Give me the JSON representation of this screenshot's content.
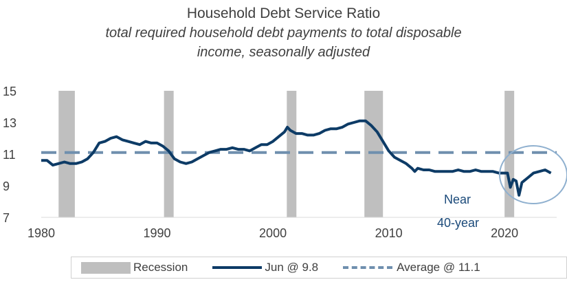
{
  "chart_data": {
    "type": "line",
    "title": "Household Debt Service Ratio",
    "subtitle_line1": "total required household debt payments to total disposable",
    "subtitle_line2": "income, seasonally adjusted",
    "xlim": [
      1980,
      2024.5
    ],
    "ylim": [
      7,
      15
    ],
    "x_ticks": [
      1980,
      1990,
      2000,
      2010,
      2020
    ],
    "y_ticks": [
      7,
      9,
      11,
      13,
      15
    ],
    "recessions": [
      [
        1981.5,
        1982.9
      ],
      [
        1990.6,
        1991.2
      ],
      [
        2001.2,
        2001.9
      ],
      [
        2007.9,
        2009.5
      ],
      [
        2020.0,
        2020.4
      ]
    ],
    "series": [
      {
        "name": "Jun @ 9.8",
        "color": "#0d3b66",
        "x": [
          1980.0,
          1980.5,
          1981.0,
          1981.5,
          1982.0,
          1982.5,
          1983.0,
          1983.5,
          1984.0,
          1984.5,
          1985.0,
          1985.5,
          1986.0,
          1986.5,
          1987.0,
          1987.5,
          1988.0,
          1988.5,
          1989.0,
          1989.5,
          1990.0,
          1990.5,
          1991.0,
          1991.5,
          1992.0,
          1992.5,
          1993.0,
          1993.5,
          1994.0,
          1994.5,
          1995.0,
          1995.5,
          1996.0,
          1996.5,
          1997.0,
          1997.5,
          1998.0,
          1998.5,
          1999.0,
          1999.5,
          2000.0,
          2000.5,
          2001.0,
          2001.25,
          2001.5,
          2002.0,
          2002.5,
          2003.0,
          2003.5,
          2004.0,
          2004.5,
          2005.0,
          2005.5,
          2006.0,
          2006.5,
          2007.0,
          2007.5,
          2008.0,
          2008.5,
          2009.0,
          2009.5,
          2010.0,
          2010.5,
          2011.0,
          2011.5,
          2012.0,
          2012.25,
          2012.5,
          2013.0,
          2013.5,
          2014.0,
          2014.5,
          2015.0,
          2015.5,
          2016.0,
          2016.5,
          2017.0,
          2017.5,
          2018.0,
          2018.5,
          2019.0,
          2019.5,
          2020.0,
          2020.25,
          2020.5,
          2020.75,
          2021.0,
          2021.25,
          2021.5,
          2022.0,
          2022.5,
          2023.0,
          2023.5,
          2024.0
        ],
        "values": [
          10.6,
          10.6,
          10.3,
          10.4,
          10.5,
          10.4,
          10.4,
          10.5,
          10.7,
          11.1,
          11.7,
          11.8,
          12.0,
          12.1,
          11.9,
          11.8,
          11.7,
          11.6,
          11.8,
          11.7,
          11.7,
          11.5,
          11.2,
          10.7,
          10.5,
          10.4,
          10.5,
          10.7,
          10.9,
          11.1,
          11.2,
          11.3,
          11.3,
          11.4,
          11.3,
          11.3,
          11.2,
          11.4,
          11.6,
          11.6,
          11.8,
          12.1,
          12.4,
          12.7,
          12.5,
          12.3,
          12.3,
          12.2,
          12.2,
          12.3,
          12.5,
          12.6,
          12.6,
          12.7,
          12.9,
          13.0,
          13.1,
          13.1,
          12.8,
          12.4,
          11.8,
          11.2,
          10.8,
          10.6,
          10.4,
          10.1,
          9.9,
          10.1,
          10.0,
          10.0,
          9.9,
          9.9,
          9.9,
          9.9,
          10.0,
          9.9,
          9.9,
          10.0,
          9.9,
          9.9,
          9.9,
          9.8,
          9.8,
          9.8,
          8.9,
          9.4,
          9.3,
          8.4,
          9.2,
          9.5,
          9.8,
          9.9,
          10.0,
          9.8
        ]
      },
      {
        "name": "Average @ 11.1",
        "color": "#6f8fae",
        "constant": 11.1
      }
    ],
    "recession_label": "Recession",
    "annotation_line1": "Near",
    "annotation_line2": "40-year",
    "legend_position": "bottom",
    "grid": false
  }
}
